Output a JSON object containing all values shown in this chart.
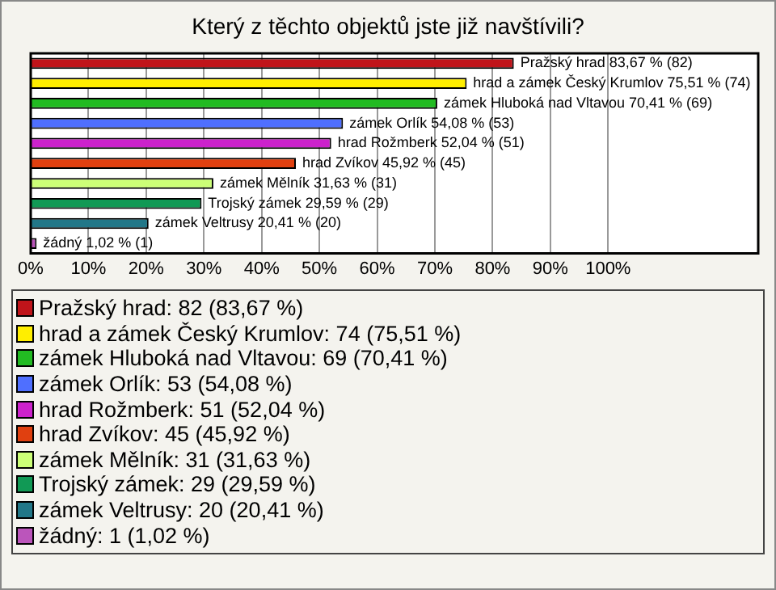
{
  "chart_data": {
    "type": "bar",
    "orientation": "horizontal",
    "stacked": true,
    "title": "Který z těchto objektů jste již navštívili?",
    "categories": [
      null,
      null,
      null,
      null,
      null,
      null,
      null,
      null,
      null,
      null
    ],
    "series": [
      {
        "name": "Pražský hrad: 82 (83,67 %)",
        "color": "#c0141a",
        "values": [
          83.67,
          null,
          null,
          null,
          null,
          null,
          null,
          null,
          null,
          null
        ],
        "value_labels": [
          "Pražský hrad 83,67 % (82)",
          null,
          null,
          null,
          null,
          null,
          null,
          null,
          null,
          null
        ]
      },
      {
        "name": "hrad a zámek Český Krumlov: 74 (75,51 %)",
        "color": "#ffee00",
        "values": [
          null,
          75.51,
          null,
          null,
          null,
          null,
          null,
          null,
          null,
          null
        ],
        "value_labels": [
          null,
          "hrad a zámek Český Krumlov 75,51 % (74)",
          null,
          null,
          null,
          null,
          null,
          null,
          null,
          null
        ]
      },
      {
        "name": "zámek Hluboká nad Vltavou: 69 (70,41 %)",
        "color": "#22bb22",
        "values": [
          null,
          null,
          70.41,
          null,
          null,
          null,
          null,
          null,
          null,
          null
        ],
        "value_labels": [
          null,
          null,
          "zámek Hluboká nad Vltavou 70,41 % (69)",
          null,
          null,
          null,
          null,
          null,
          null,
          null
        ]
      },
      {
        "name": "zámek Orlík: 53 (54,08 %)",
        "color": "#4f6fff",
        "values": [
          null,
          null,
          null,
          54.08,
          null,
          null,
          null,
          null,
          null,
          null
        ],
        "value_labels": [
          null,
          null,
          null,
          "zámek Orlík 54,08 % (53)",
          null,
          null,
          null,
          null,
          null,
          null
        ]
      },
      {
        "name": "hrad Rožmberk: 51 (52,04 %)",
        "color": "#cc22cc",
        "values": [
          null,
          null,
          null,
          null,
          52.04,
          null,
          null,
          null,
          null,
          null
        ],
        "value_labels": [
          null,
          null,
          null,
          null,
          "hrad Rožmberk 52,04 % (51)",
          null,
          null,
          null,
          null,
          null
        ]
      },
      {
        "name": "hrad Zvíkov: 45 (45,92 %)",
        "color": "#e04010",
        "values": [
          null,
          null,
          null,
          null,
          null,
          45.92,
          null,
          null,
          null,
          null
        ],
        "value_labels": [
          null,
          null,
          null,
          null,
          null,
          "hrad Zvíkov 45,92 % (45)",
          null,
          null,
          null,
          null
        ]
      },
      {
        "name": "zámek Mělník: 31 (31,63 %)",
        "color": "#ccff77",
        "values": [
          null,
          null,
          null,
          null,
          null,
          null,
          31.63,
          null,
          null,
          null
        ],
        "value_labels": [
          null,
          null,
          null,
          null,
          null,
          null,
          "zámek Mělník 31,63 % (31)",
          null,
          null,
          null
        ]
      },
      {
        "name": "Trojský zámek: 29 (29,59 %)",
        "color": "#119955",
        "values": [
          null,
          null,
          null,
          null,
          null,
          null,
          null,
          29.59,
          null,
          null
        ],
        "value_labels": [
          null,
          null,
          null,
          null,
          null,
          null,
          null,
          "Trojský zámek 29,59 % (29)",
          null,
          null
        ]
      },
      {
        "name": "zámek Veltrusy: 20 (20,41 %)",
        "color": "#227788",
        "values": [
          null,
          null,
          null,
          null,
          null,
          null,
          null,
          null,
          20.41,
          null
        ],
        "value_labels": [
          null,
          null,
          null,
          null,
          null,
          null,
          null,
          null,
          "zámek Veltrusy 20,41 % (20)",
          null
        ]
      },
      {
        "name": "žádný: 1 (1,02 %)",
        "color": "#bb55bb",
        "values": [
          null,
          null,
          null,
          null,
          null,
          null,
          null,
          null,
          null,
          1.02
        ],
        "value_labels": [
          null,
          null,
          null,
          null,
          null,
          null,
          null,
          null,
          null,
          "žádný 1,02 % (1)"
        ]
      }
    ],
    "xlim": [
      0,
      126
    ],
    "xticks": [
      {
        "value": 0,
        "label": "0%"
      },
      {
        "value": 10,
        "label": "10%"
      },
      {
        "value": 20,
        "label": "20%"
      },
      {
        "value": 30,
        "label": "30%"
      },
      {
        "value": 40,
        "label": "40%"
      },
      {
        "value": 50,
        "label": "50%"
      },
      {
        "value": 60,
        "label": "60%"
      },
      {
        "value": 70,
        "label": "70%"
      },
      {
        "value": 80,
        "label": "80%"
      },
      {
        "value": 90,
        "label": "90%"
      },
      {
        "value": 100,
        "label": "100%"
      }
    ],
    "grid": "x",
    "legend": "bottom",
    "tick_labels": "x"
  }
}
